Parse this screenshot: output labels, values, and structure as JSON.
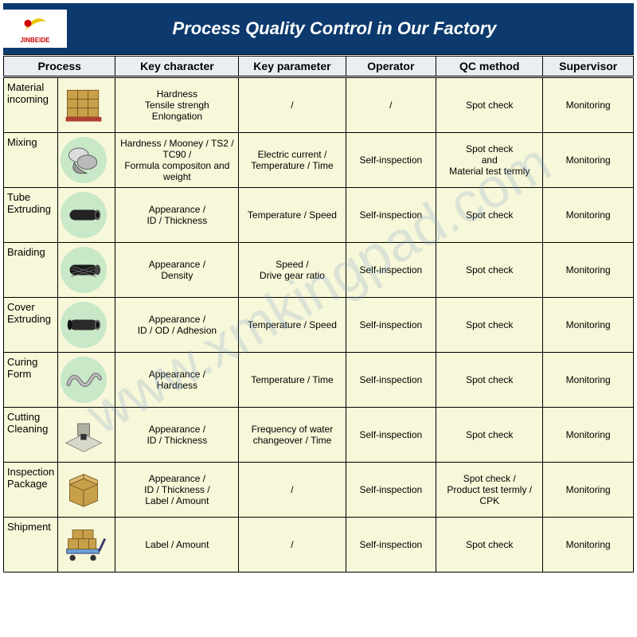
{
  "title": "Process Quality Control in Our Factory",
  "logo_text": "JINBEIDE",
  "watermark": "www.xmkingpad.com",
  "columns": [
    "Process",
    "Key character",
    "Key parameter",
    "Operator",
    "QC method",
    "Supervisor"
  ],
  "rows": [
    {
      "process": "Material incoming",
      "icon": "boxes-pallet",
      "green_bg": false,
      "key_character": "Hardness\nTensile strengh\nEnlongation",
      "key_parameter": "/",
      "operator": "/",
      "qc_method": "Spot check",
      "supervisor": "Monitoring"
    },
    {
      "process": "Mixing",
      "icon": "roll-machine",
      "green_bg": true,
      "key_character": "Hardness / Mooney / TS2 / TC90 /\nFormula compositon and weight",
      "key_parameter": "Electric current / Temperature / Time",
      "operator": "Self-inspection",
      "qc_method": "Spot check\nand\nMaterial test termly",
      "supervisor": "Monitoring"
    },
    {
      "process": "Tube Extruding",
      "icon": "black-tube",
      "green_bg": true,
      "key_character": "Appearance /\nID / Thickness",
      "key_parameter": "Temperature / Speed",
      "operator": "Self-inspection",
      "qc_method": "Spot check",
      "supervisor": "Monitoring"
    },
    {
      "process": "Braiding",
      "icon": "braided-tube",
      "green_bg": true,
      "key_character": "Appearance /\nDensity",
      "key_parameter": "Speed /\nDrive gear ratio",
      "operator": "Self-inspection",
      "qc_method": "Spot check",
      "supervisor": "Monitoring"
    },
    {
      "process": "Cover Extruding",
      "icon": "cover-tube",
      "green_bg": true,
      "key_character": "Appearance /\nID / OD / Adhesion",
      "key_parameter": "Temperature / Speed",
      "operator": "Self-inspection",
      "qc_method": "Spot check",
      "supervisor": "Monitoring"
    },
    {
      "process": "Curing Form",
      "icon": "curved-hose",
      "green_bg": true,
      "key_character": "Appearance /\nHardness",
      "key_parameter": "Temperature / Time",
      "operator": "Self-inspection",
      "qc_method": "Spot check",
      "supervisor": "Monitoring"
    },
    {
      "process": "Cutting Cleaning",
      "icon": "cutting-machine",
      "green_bg": false,
      "key_character": "Appearance /\nID / Thickness",
      "key_parameter": "Frequency of water changeover / Time",
      "operator": "Self-inspection",
      "qc_method": "Spot check",
      "supervisor": "Monitoring"
    },
    {
      "process": "Inspection Package",
      "icon": "single-box",
      "green_bg": false,
      "key_character": "Appearance /\nID / Thickness /\nLabel / Amount",
      "key_parameter": "/",
      "operator": "Self-inspection",
      "qc_method": "Spot check /\nProduct test termly / CPK",
      "supervisor": "Monitoring"
    },
    {
      "process": "Shipment",
      "icon": "trolley-boxes",
      "green_bg": false,
      "key_character": "Label / Amount",
      "key_parameter": "/",
      "operator": "Self-inspection",
      "qc_method": "Spot check",
      "supervisor": "Monitoring"
    }
  ],
  "colors": {
    "header_bg": "#0d3a6e",
    "header_text": "#ffffff",
    "th_bg": "#eaeef2",
    "cell_bg": "#f7f7d9",
    "green_circle": "#c8e8c8",
    "watermark": "rgba(120,160,200,0.22)"
  },
  "fonts": {
    "title_size": 22,
    "th_size": 14,
    "cell_size": 12,
    "process_label_size": 13
  }
}
